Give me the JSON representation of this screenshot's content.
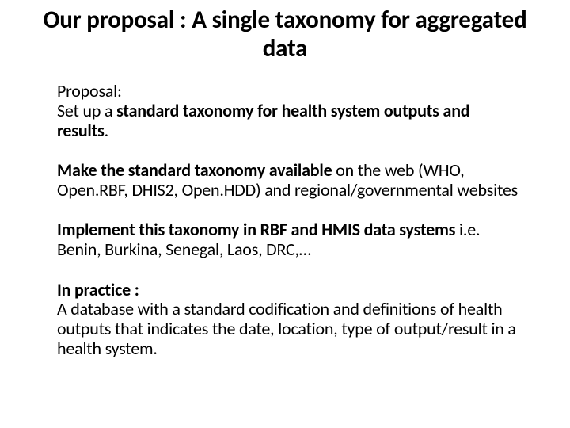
{
  "title": "Our proposal : A single taxonomy for aggregated data",
  "p1": {
    "line1": "Proposal:",
    "line2_pre": "Set up a ",
    "line2_bold": "standard taxonomy for health system outputs and results",
    "line2_post": "."
  },
  "p2": {
    "bold": "Make the standard taxonomy available",
    "rest": " on the web (WHO, Open.RBF, DHIS2, Open.HDD) and regional/governmental websites"
  },
  "p3": {
    "bold": "Implement this taxonomy in RBF and HMIS data systems",
    "rest": " i.e. Benin, Burkina, Senegal, Laos, DRC,…"
  },
  "p4": {
    "bold": "In practice :",
    "rest": "A database with a standard codification and definitions of health outputs that indicates the date, location, type of output/result in a health system."
  },
  "colors": {
    "background": "#ffffff",
    "text": "#000000"
  },
  "typography": {
    "title_fontsize": 31,
    "body_fontsize": 22,
    "font_family": "Calibri"
  }
}
